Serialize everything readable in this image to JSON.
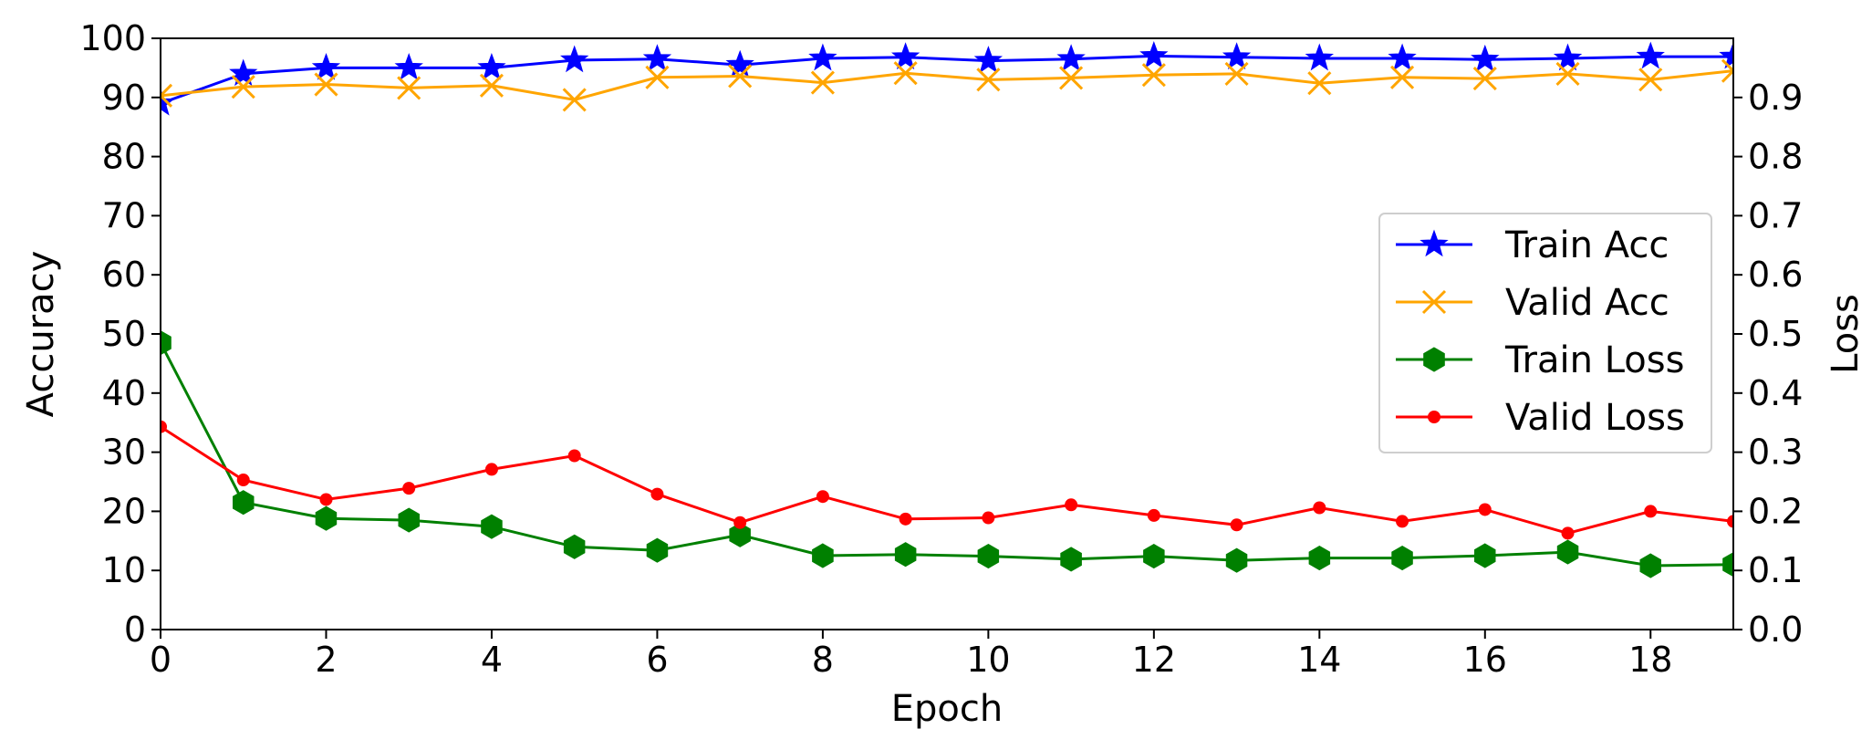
{
  "chart_data": {
    "type": "line",
    "xlabel": "Epoch",
    "ylabel_left": "Accuracy",
    "ylabel_right": "Loss",
    "xlim": [
      0,
      19
    ],
    "ylim_left": [
      0,
      100
    ],
    "ylim_right": [
      0,
      1.0
    ],
    "x_ticks": [
      0,
      2,
      4,
      6,
      8,
      10,
      12,
      14,
      16,
      18
    ],
    "y_left_ticks": [
      0,
      10,
      20,
      30,
      40,
      50,
      60,
      70,
      80,
      90,
      100
    ],
    "y_right_ticks": [
      "0.0",
      "0.1",
      "0.2",
      "0.3",
      "0.4",
      "0.5",
      "0.6",
      "0.7",
      "0.8",
      "0.9"
    ],
    "legend_position": "center-right",
    "grid": false,
    "x": [
      0,
      1,
      2,
      3,
      4,
      5,
      6,
      7,
      8,
      9,
      10,
      11,
      12,
      13,
      14,
      15,
      16,
      17,
      18,
      19
    ],
    "series": [
      {
        "name": "Train Acc",
        "axis": "left",
        "color": "#0000ff",
        "marker": "star",
        "values": [
          89.0,
          94.0,
          95.0,
          95.0,
          95.0,
          96.3,
          96.5,
          95.5,
          96.6,
          96.8,
          96.2,
          96.5,
          97.0,
          96.8,
          96.6,
          96.6,
          96.4,
          96.6,
          96.9,
          96.9
        ]
      },
      {
        "name": "Valid Acc",
        "axis": "left",
        "color": "#ffa500",
        "marker": "x",
        "values": [
          90.3,
          91.8,
          92.2,
          91.6,
          92.0,
          89.6,
          93.4,
          93.6,
          92.5,
          94.1,
          93.0,
          93.3,
          93.8,
          94.0,
          92.4,
          93.4,
          93.2,
          94.0,
          93.0,
          94.5
        ]
      },
      {
        "name": "Train Loss",
        "axis": "right",
        "color": "#008000",
        "marker": "hexagon",
        "values": [
          0.485,
          0.215,
          0.188,
          0.185,
          0.174,
          0.14,
          0.134,
          0.16,
          0.125,
          0.127,
          0.124,
          0.119,
          0.124,
          0.117,
          0.121,
          0.121,
          0.125,
          0.131,
          0.108,
          0.11
        ]
      },
      {
        "name": "Valid Loss",
        "axis": "right",
        "color": "#ff0000",
        "marker": "dot",
        "values": [
          0.343,
          0.253,
          0.22,
          0.239,
          0.271,
          0.294,
          0.229,
          0.181,
          0.225,
          0.187,
          0.189,
          0.211,
          0.193,
          0.177,
          0.206,
          0.183,
          0.203,
          0.163,
          0.2,
          0.183
        ]
      }
    ]
  }
}
